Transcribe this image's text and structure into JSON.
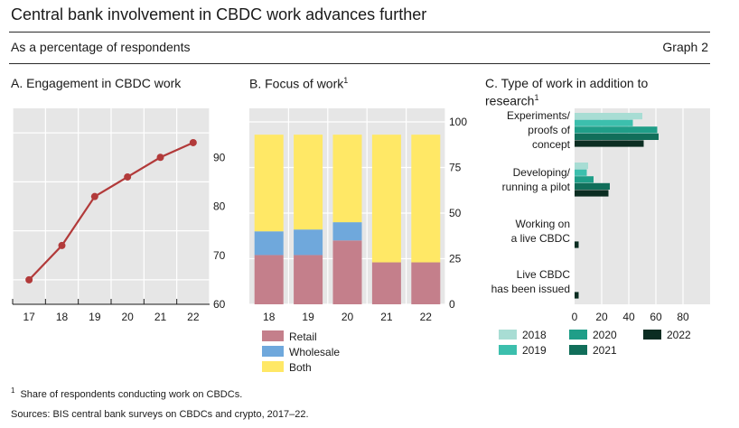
{
  "header": {
    "title": "Central bank involvement in CBDC work advances further",
    "subtitle": "As a percentage of respondents",
    "graph_number": "Graph 2"
  },
  "footer": {
    "footnote_marker": "1",
    "footnote": "Share of respondents conducting work on CBDCs.",
    "sources": "Sources: BIS central bank surveys on CBDCs and crypto, 2017–22."
  },
  "colors": {
    "panel_bg": "#e6e6e6",
    "grid": "#ffffff",
    "line": "#b23a3a",
    "retail": "#c47f8b",
    "wholesale": "#6fa8dc",
    "both": "#ffe866",
    "y2018": "#a8ddd4",
    "y2019": "#3cbfad",
    "y2020": "#1f9e88",
    "y2021": "#116e5a",
    "y2022": "#0b2d22"
  },
  "chart_data": [
    {
      "type": "line",
      "title": "A. Engagement in CBDC work",
      "x": [
        "17",
        "18",
        "19",
        "20",
        "21",
        "22"
      ],
      "series": [
        {
          "name": "Engagement",
          "values": [
            65,
            72,
            82,
            86,
            90,
            93
          ]
        }
      ],
      "ylim": [
        60,
        100
      ],
      "yticks": [
        "60",
        "70",
        "80",
        "90"
      ],
      "ytick_values": [
        60,
        70,
        80,
        90
      ],
      "yaxis": "right"
    },
    {
      "type": "bar",
      "stacked": true,
      "title": "B. Focus of work",
      "title_footnote": "1",
      "categories": [
        "18",
        "19",
        "20",
        "21",
        "22"
      ],
      "series": [
        {
          "name": "Retail",
          "values": [
            27,
            27,
            35,
            23,
            23
          ]
        },
        {
          "name": "Wholesale",
          "values": [
            13,
            14,
            10,
            0,
            0
          ]
        },
        {
          "name": "Both",
          "values": [
            53,
            52,
            48,
            70,
            70
          ]
        }
      ],
      "ylim": [
        0,
        100
      ],
      "yticks": [
        "0",
        "25",
        "50",
        "75",
        "100"
      ],
      "ytick_values": [
        0,
        25,
        50,
        75,
        100
      ],
      "yaxis": "right"
    },
    {
      "type": "bar",
      "orientation": "horizontal",
      "title": "C. Type of work in addition to research",
      "title_footnote": "1",
      "categories": [
        "Experiments/ proofs of concept",
        "Developing/ running a pilot",
        "Working on a live CBDC",
        "Live CBDC has been issued"
      ],
      "category_lines": [
        [
          "Experiments/",
          "proofs of",
          "concept"
        ],
        [
          "Developing/",
          "running a pilot"
        ],
        [
          "Working on",
          "a live CBDC"
        ],
        [
          "Live CBDC",
          "has been issued"
        ]
      ],
      "series": [
        {
          "name": "2018",
          "values": [
            50,
            10,
            0,
            0
          ]
        },
        {
          "name": "2019",
          "values": [
            43,
            9,
            0,
            0
          ]
        },
        {
          "name": "2020",
          "values": [
            61,
            14,
            0,
            0
          ]
        },
        {
          "name": "2021",
          "values": [
            62,
            26,
            0,
            0
          ]
        },
        {
          "name": "2022",
          "values": [
            51,
            25,
            3,
            3
          ]
        }
      ],
      "xlim": [
        0,
        100
      ],
      "xticks": [
        "0",
        "20",
        "40",
        "60",
        "80"
      ],
      "xtick_values": [
        0,
        20,
        40,
        60,
        80
      ]
    }
  ]
}
